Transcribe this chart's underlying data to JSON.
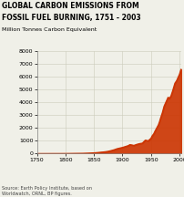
{
  "title_line1": "GLOBAL CARBON EMISSIONS FROM",
  "title_line2": "FOSSIL FUEL BURNING, 1751 - 2003",
  "ylabel": "Million Tonnes Carbon Equivalent",
  "source": "Source: Earth Policy Institute, based on\nWorldwatch, ORNL, BP figures.",
  "line_color": "#cc3300",
  "background_color": "#f0f0e8",
  "xlim": [
    1750,
    2003
  ],
  "ylim": [
    0,
    8000
  ],
  "xticks": [
    1750,
    1800,
    1850,
    1900,
    1950,
    2000
  ],
  "yticks": [
    0,
    1000,
    2000,
    3000,
    4000,
    5000,
    6000,
    7000,
    8000
  ],
  "years": [
    1751,
    1760,
    1770,
    1780,
    1790,
    1800,
    1810,
    1820,
    1830,
    1840,
    1850,
    1855,
    1860,
    1865,
    1870,
    1875,
    1880,
    1885,
    1890,
    1895,
    1900,
    1905,
    1910,
    1913,
    1920,
    1925,
    1930,
    1935,
    1940,
    1945,
    1950,
    1952,
    1955,
    1957,
    1960,
    1963,
    1965,
    1967,
    1970,
    1973,
    1975,
    1978,
    1980,
    1982,
    1985,
    1988,
    1990,
    1992,
    1995,
    1998,
    2000,
    2001,
    2002,
    2003
  ],
  "values": [
    3,
    3,
    4,
    5,
    5,
    8,
    12,
    18,
    22,
    35,
    60,
    75,
    98,
    120,
    145,
    180,
    235,
    295,
    375,
    430,
    480,
    550,
    620,
    700,
    640,
    720,
    780,
    820,
    1050,
    1000,
    1200,
    1380,
    1560,
    1750,
    2000,
    2250,
    2500,
    2800,
    3200,
    3700,
    3900,
    4200,
    4400,
    4300,
    4500,
    4900,
    5200,
    5500,
    5700,
    6000,
    6200,
    6350,
    6500,
    6600
  ]
}
